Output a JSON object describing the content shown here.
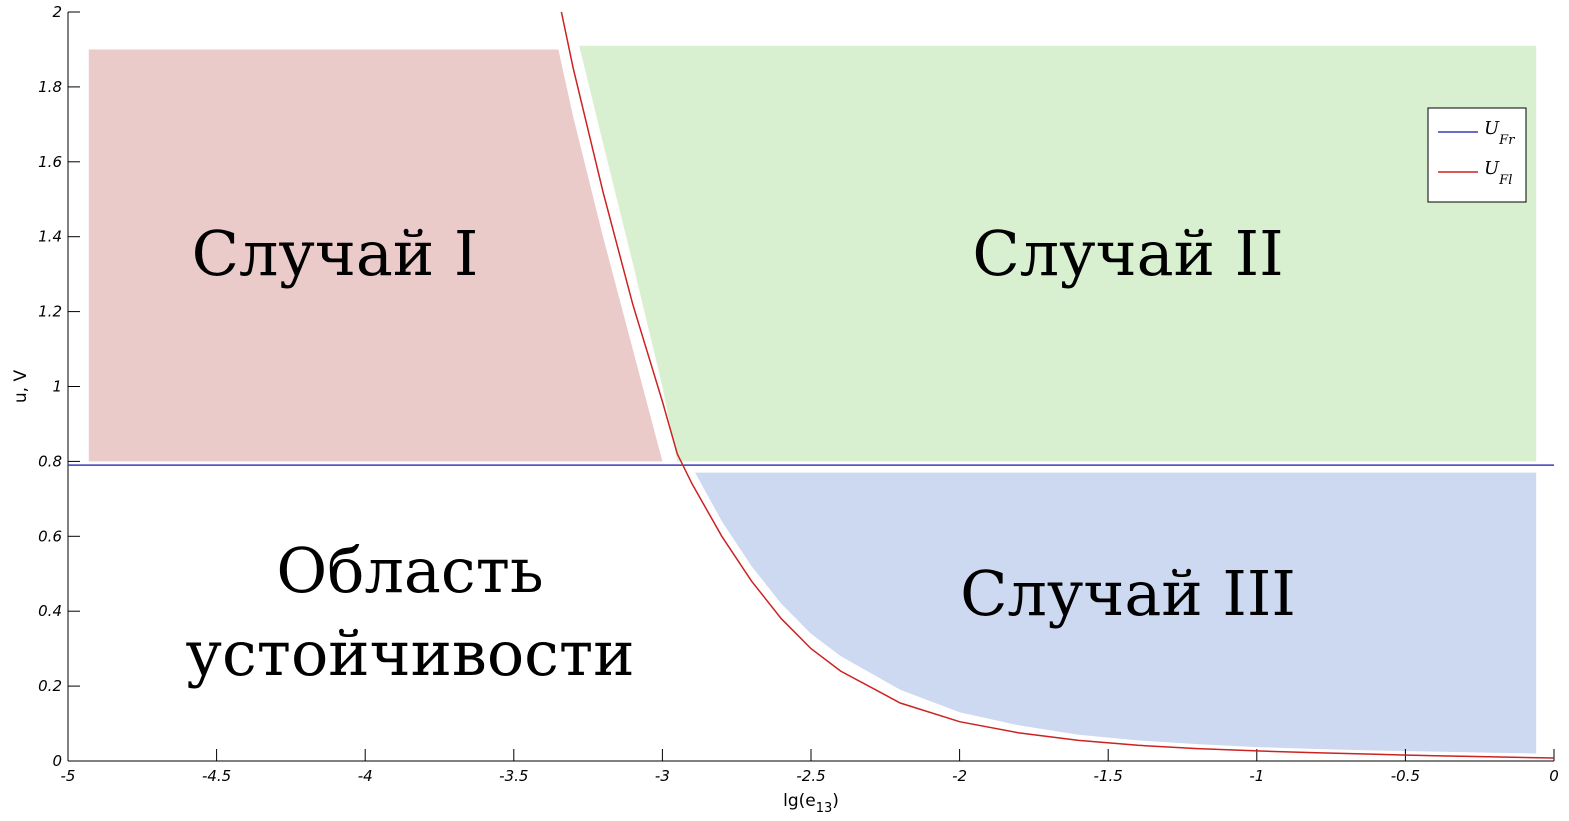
{
  "chart_data": {
    "type": "line",
    "xlabel": "lg(e",
    "xlabel_sub": "13",
    "xlabel_close": ")",
    "ylabel": "u, V",
    "xlim": [
      -5,
      0
    ],
    "ylim": [
      0,
      2
    ],
    "x_ticks": [
      "-5",
      "-4.5",
      "-4",
      "-3.5",
      "-3",
      "-2.5",
      "-2",
      "-1.5",
      "-1",
      "-0.5",
      "0"
    ],
    "y_ticks": [
      "0",
      "0.2",
      "0.4",
      "0.6",
      "0.8",
      "1",
      "1.2",
      "1.4",
      "1.6",
      "1.8",
      "2"
    ],
    "legend_position": "top-right",
    "series": [
      {
        "name": "U",
        "name_sub": "Fr",
        "color": "#3a3ab8",
        "x": [
          -5,
          0
        ],
        "y": [
          0.79,
          0.79
        ]
      },
      {
        "name": "U",
        "name_sub": "Fl",
        "color": "#cc2222",
        "x": [
          -3.34,
          -3.3,
          -3.2,
          -3.1,
          -3.0,
          -2.95,
          -2.9,
          -2.8,
          -2.7,
          -2.6,
          -2.5,
          -2.4,
          -2.2,
          -2.0,
          -1.8,
          -1.6,
          -1.4,
          -1.2,
          -1.0,
          -0.8,
          -0.6,
          -0.4,
          -0.2,
          0
        ],
        "y": [
          2.0,
          1.85,
          1.52,
          1.22,
          0.96,
          0.82,
          0.74,
          0.6,
          0.48,
          0.38,
          0.3,
          0.24,
          0.155,
          0.105,
          0.075,
          0.055,
          0.042,
          0.033,
          0.027,
          0.022,
          0.018,
          0.014,
          0.011,
          0.008
        ]
      }
    ],
    "regions": [
      {
        "label": "Случай I",
        "color": "#ebcaca",
        "boundary_x": [
          -4.93,
          -3.35,
          -3.3,
          -3.2,
          -3.1,
          -3.0
        ],
        "boundary_y": [
          1.9,
          1.9,
          1.72,
          1.4,
          1.1,
          0.8
        ],
        "y_bottom": 0.8
      },
      {
        "label": "Случай II",
        "color": "#d8efd0",
        "boundary_x": [
          -3.28,
          -3.2,
          -3.1,
          -3.0,
          -2.95
        ],
        "boundary_y": [
          1.91,
          1.65,
          1.33,
          1.0,
          0.8
        ],
        "x_right": -0.06,
        "y_bottom": 0.8,
        "y_top": 1.91
      },
      {
        "label": "Случай III",
        "color": "#ccd9f0",
        "boundary_x": [
          -2.89,
          -2.8,
          -2.7,
          -2.6,
          -2.5,
          -2.4,
          -2.2,
          -2.0,
          -1.8,
          -1.6,
          -1.4,
          -1.2,
          -1.0,
          -0.8,
          -0.6,
          -0.4,
          -0.2,
          -0.06
        ],
        "boundary_y": [
          0.77,
          0.64,
          0.52,
          0.42,
          0.34,
          0.28,
          0.19,
          0.13,
          0.095,
          0.07,
          0.055,
          0.045,
          0.037,
          0.032,
          0.028,
          0.025,
          0.022,
          0.02
        ],
        "x_right": -0.06,
        "y_top": 0.77
      }
    ],
    "labels": {
      "case_1": "Случай I",
      "case_2": "Случай II",
      "case_3": "Случай III",
      "stability_line1": "Область",
      "stability_line2": "устойчивости"
    }
  }
}
